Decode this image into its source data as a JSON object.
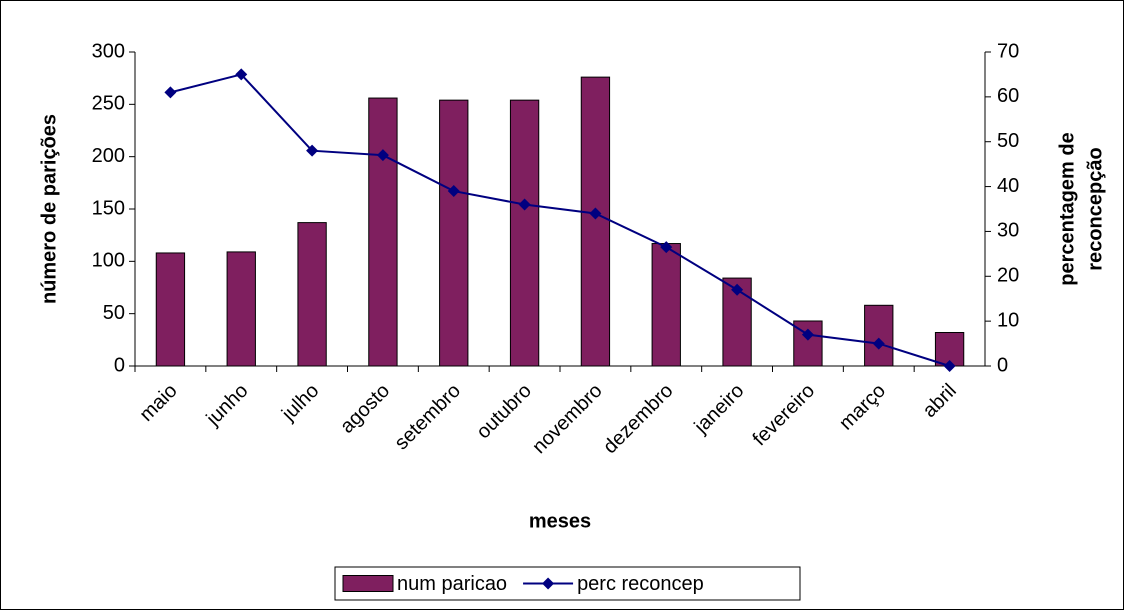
{
  "chart_data": {
    "type": "bar",
    "xlabel": "meses",
    "ylabel": "número de parições",
    "y2label": [
      "percentagem de",
      "reconcepção"
    ],
    "categories": [
      "maio",
      "junho",
      "julho",
      "agosto",
      "setembro",
      "outubro",
      "novembro",
      "dezembro",
      "janeiro",
      "fevereiro",
      "março",
      "abril"
    ],
    "series": [
      {
        "name": "num paricao",
        "type": "bar",
        "color": "#7f1f5f",
        "values": [
          108,
          109,
          137,
          256,
          254,
          254,
          276,
          117,
          84,
          43,
          58,
          32
        ]
      },
      {
        "name": "perc reconcep",
        "type": "line",
        "color": "#000080",
        "axis": "y2",
        "values": [
          61,
          65,
          48,
          47,
          39,
          36,
          34,
          26.5,
          17,
          7,
          5,
          0
        ]
      }
    ],
    "ylim": [
      0,
      300
    ],
    "yticks": [
      0,
      50,
      100,
      150,
      200,
      250,
      300
    ],
    "y2lim": [
      0,
      70
    ],
    "y2ticks": [
      0,
      10,
      20,
      30,
      40,
      50,
      60,
      70
    ],
    "legend": "bottom"
  }
}
